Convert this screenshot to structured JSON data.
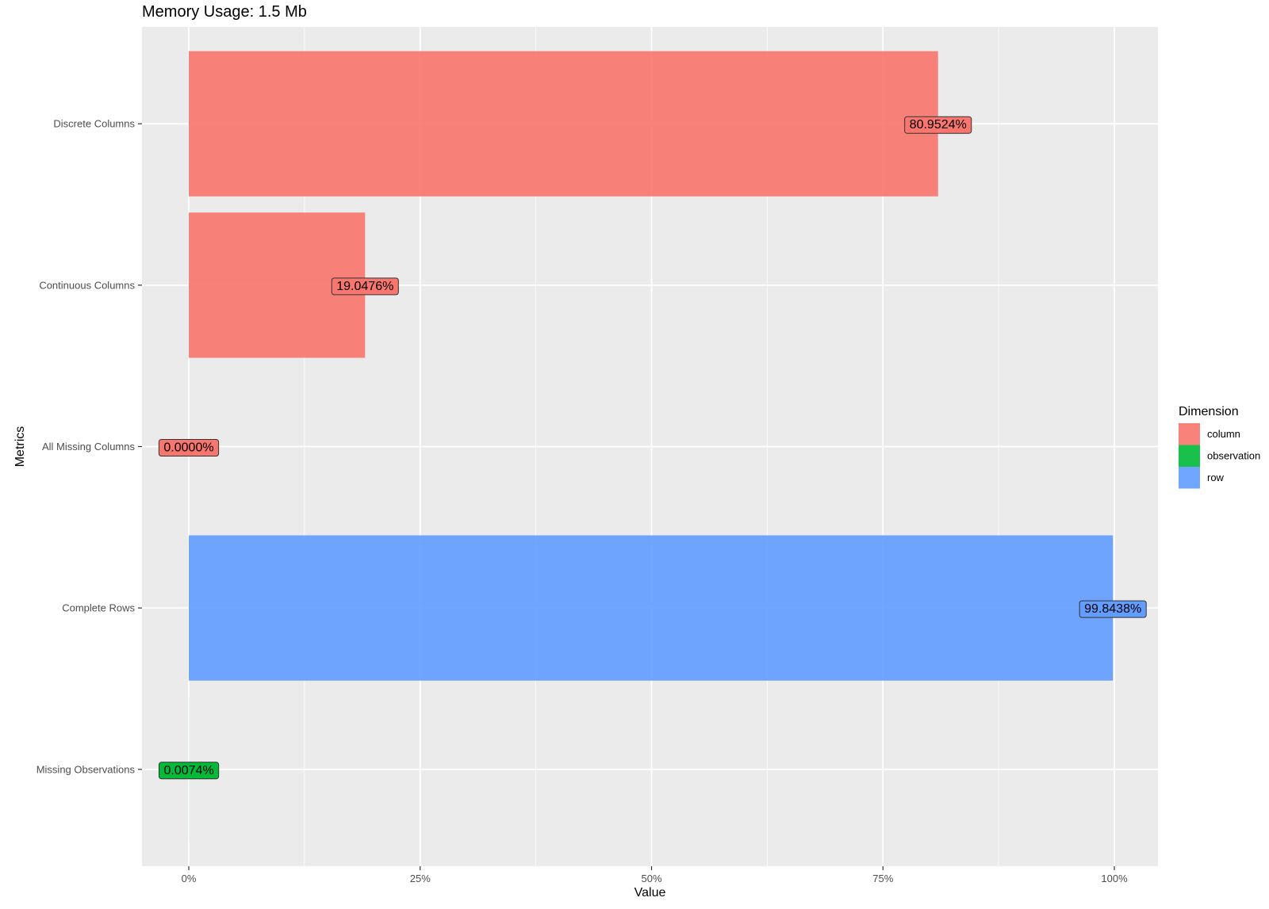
{
  "chart_data": {
    "type": "bar",
    "orientation": "horizontal",
    "title": "Memory Usage: 1.5 Mb",
    "xlabel": "Value",
    "ylabel": "Metrics",
    "xlim": [
      -0.05,
      1.05
    ],
    "x_ticks": [
      0,
      0.25,
      0.5,
      0.75,
      1.0
    ],
    "x_tick_labels": [
      "0%",
      "25%",
      "50%",
      "75%",
      "100%"
    ],
    "grid": true,
    "legend": {
      "title": "Dimension",
      "placement": "right",
      "entries": [
        {
          "name": "column",
          "color": "#F8766D"
        },
        {
          "name": "observation",
          "color": "#00BA38"
        },
        {
          "name": "row",
          "color": "#619CFF"
        }
      ]
    },
    "categories": [
      "Discrete Columns",
      "Continuous Columns",
      "All Missing Columns",
      "Complete Rows",
      "Missing Observations"
    ],
    "values": [
      0.809524,
      0.190476,
      0.0,
      0.998438,
      7.4e-05
    ],
    "dimensions": [
      "column",
      "column",
      "column",
      "row",
      "observation"
    ],
    "data_labels": [
      "80.9524%",
      "19.0476%",
      "0.0000%",
      "99.8438%",
      "0.0074%"
    ]
  }
}
